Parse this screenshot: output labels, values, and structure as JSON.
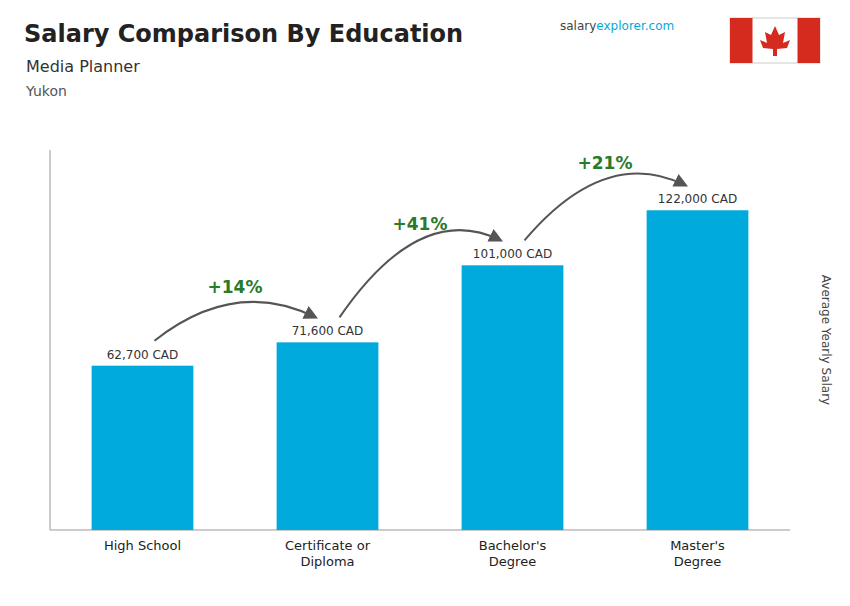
{
  "chart_data": {
    "type": "bar",
    "title": "Salary Comparison By Education",
    "subtitle": [
      "Media Planner",
      "Yukon"
    ],
    "credit": [
      "salary",
      "explorer.com"
    ],
    "ylabel": "Average Yearly Salary",
    "categories": [
      "High School",
      "Certificate or\nDiploma",
      "Bachelor's\nDegree",
      "Master's\nDegree"
    ],
    "values": [
      62700,
      71600,
      101000,
      122000
    ],
    "value_labels": [
      "62,700 CAD",
      "71,600 CAD",
      "101,000 CAD",
      "122,000 CAD"
    ],
    "data_labels": true,
    "color": "#00aadd",
    "ylim": [
      0,
      145000
    ],
    "tick_labels": "x",
    "annotations": [
      {
        "label": "+14%",
        "value": 14
      },
      {
        "label": "+41%",
        "value": 41
      },
      {
        "label": "+21%",
        "value": 21
      }
    ]
  }
}
